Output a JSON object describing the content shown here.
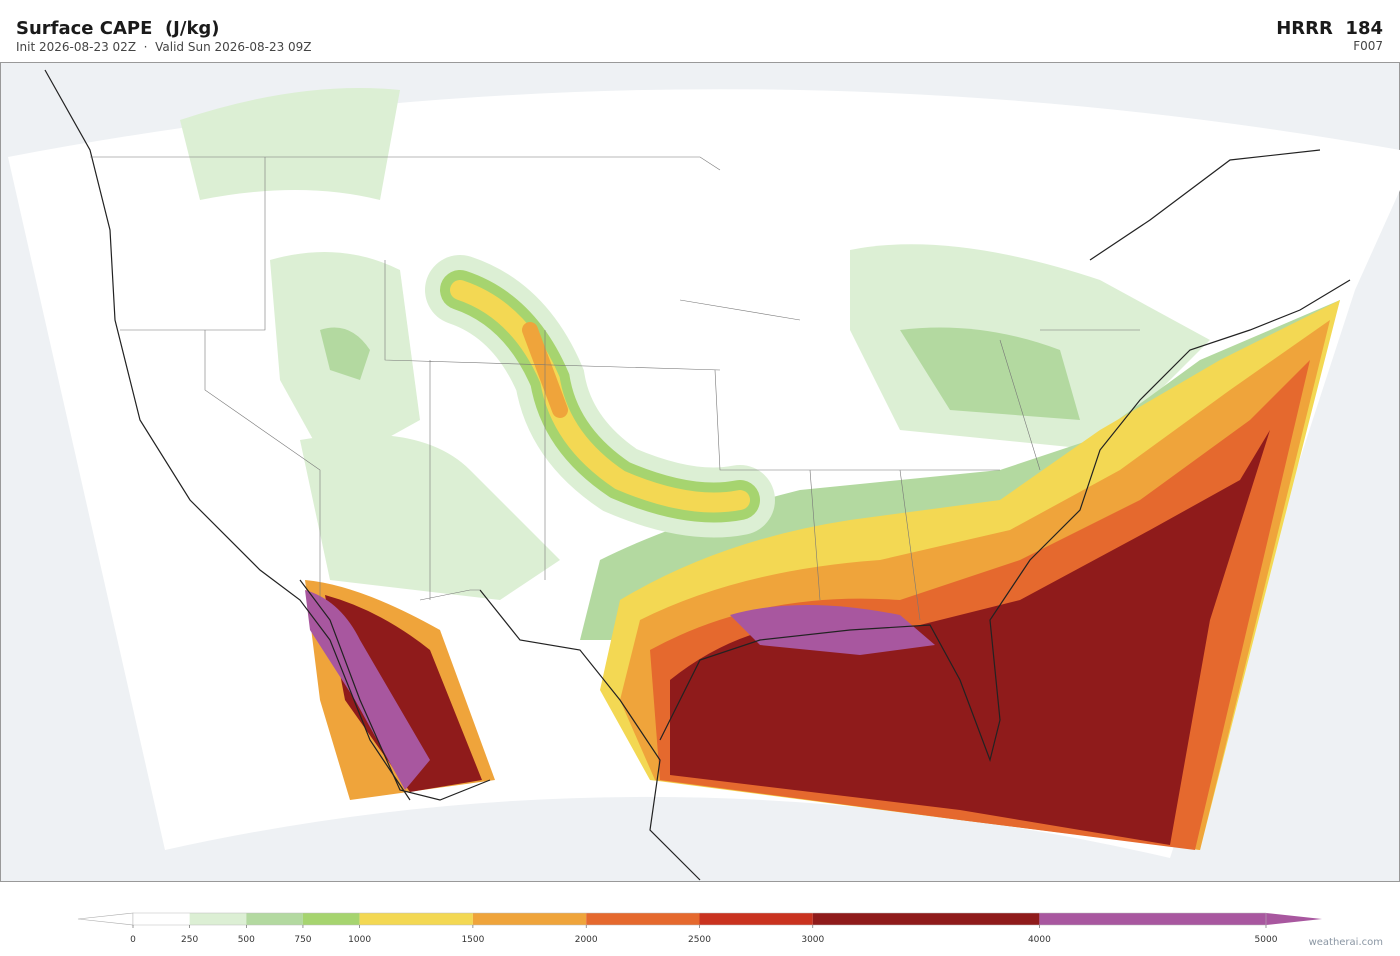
{
  "header": {
    "title": "Surface CAPE  (J/kg)",
    "subtitle": "Init 2026-08-23 02Z  ·  Valid Sun 2026-08-23 09Z",
    "model": "HRRR  184",
    "forecast": "F007"
  },
  "colorbar": {
    "ticks": [
      0,
      250,
      500,
      750,
      1000,
      1500,
      2000,
      2500,
      3000,
      4000,
      5000
    ],
    "colors": [
      "#ffffff",
      "#dcefd4",
      "#b3d9a0",
      "#a6d46f",
      "#f3d853",
      "#efa43b",
      "#e5692e",
      "#c9321f",
      "#8f1b1b",
      "#a8579f"
    ]
  },
  "credit": "weatherai.com"
}
